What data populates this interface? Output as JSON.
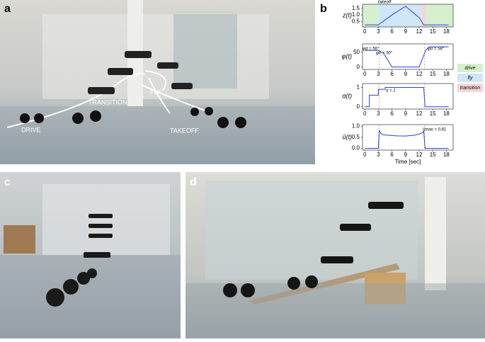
{
  "panels": [
    "a",
    "b",
    "c",
    "d"
  ],
  "photo_a_labels": [
    "DRIVE",
    "TRANSITION",
    "FLY",
    "TAKEOFF"
  ],
  "legend": [
    {
      "label": "drive",
      "color": "#d6f0cf"
    },
    {
      "label": "fly",
      "color": "#cfe6f7"
    },
    {
      "label": "transition",
      "color": "#f4d6d6"
    }
  ],
  "chart_data": [
    {
      "type": "line",
      "ylabel": "z(t)",
      "annotations": [
        "takeoff"
      ],
      "color": "#2b3fd6",
      "x": [
        0,
        3,
        4,
        6,
        9,
        12,
        13,
        14,
        18.5
      ],
      "values": [
        0.25,
        0.25,
        0.5,
        1.0,
        1.65,
        0.8,
        0.25,
        0.25,
        0.25
      ],
      "xlim": [
        -0.5,
        19.5
      ],
      "ylim": [
        0.1,
        1.8
      ],
      "xticks": [
        0,
        3,
        6,
        9,
        12,
        15,
        18
      ],
      "yticks": [
        {
          "value": 0.5,
          "label": "0.5"
        },
        {
          "value": 1.0,
          "label": "1.0"
        },
        {
          "value": 1.5,
          "label": "1.5"
        }
      ],
      "regions": [
        {
          "x0": -0.5,
          "x1": 3,
          "color": "#d6f0cf"
        },
        {
          "x0": 3,
          "x1": 12.5,
          "color": "#cfe6f7"
        },
        {
          "x0": 12.5,
          "x1": 13.5,
          "color": "#f4d6d6"
        },
        {
          "x0": 13.5,
          "x1": 19.5,
          "color": "#d6f0cf"
        }
      ]
    },
    {
      "type": "line",
      "ylabel": "φ(t)",
      "annotations": [
        "φd = 56°",
        "φ0 = 50°",
        "φ0 = 58°"
      ],
      "color": "#2b3fd6",
      "x": [
        0,
        3,
        3.6,
        4,
        6,
        12,
        13.5,
        14.2,
        18.5
      ],
      "values": [
        56,
        56,
        50,
        50,
        0,
        0,
        58,
        68,
        68
      ],
      "xlim": [
        -0.5,
        19.5
      ],
      "ylim": [
        -8,
        78
      ],
      "xticks": [
        0,
        3,
        6,
        9,
        12,
        15,
        18
      ],
      "yticks": [
        0,
        50
      ],
      "vlines": [
        3.2,
        13.2
      ]
    },
    {
      "type": "line",
      "ylabel": "α(t)",
      "annotations": [
        "α = 1"
      ],
      "color": "#2b3fd6",
      "x": [
        0,
        1,
        1,
        3,
        3,
        4.5,
        4.5,
        13,
        13.3,
        18.5
      ],
      "values": [
        0,
        0,
        0.6,
        0.6,
        0.9,
        0.9,
        1,
        1,
        0,
        0
      ],
      "xlim": [
        -0.5,
        19.5
      ],
      "ylim": [
        -0.12,
        1.2
      ],
      "xticks": [
        0,
        3,
        6,
        9,
        12,
        15,
        18
      ],
      "yticks": [
        0,
        1
      ],
      "vlines": [
        3.2,
        13.2
      ]
    },
    {
      "type": "line",
      "ylabel": "ū(t)",
      "annotations": [
        "ūmax = 0.81"
      ],
      "color": "#2b3fd6",
      "xlabel": "Time [sec]",
      "x": [
        0,
        3,
        3.2,
        3.5,
        4,
        5,
        7,
        9,
        11,
        12,
        12.8,
        13,
        13.3,
        18.5
      ],
      "values": [
        0,
        0,
        0.81,
        0.7,
        0.62,
        0.6,
        0.57,
        0.56,
        0.6,
        0.65,
        0.72,
        0.78,
        0,
        0
      ],
      "xlim": [
        -0.5,
        19.5
      ],
      "ylim": [
        -0.08,
        1.08
      ],
      "xticks": [
        0,
        3,
        6,
        9,
        12,
        15,
        18
      ],
      "yticks": [
        {
          "value": 0,
          "label": "0.0"
        },
        {
          "value": 0.5,
          "label": "0.5"
        },
        {
          "value": 1,
          "label": "1.0"
        }
      ],
      "vlines": [
        3.2,
        13.2
      ]
    }
  ]
}
